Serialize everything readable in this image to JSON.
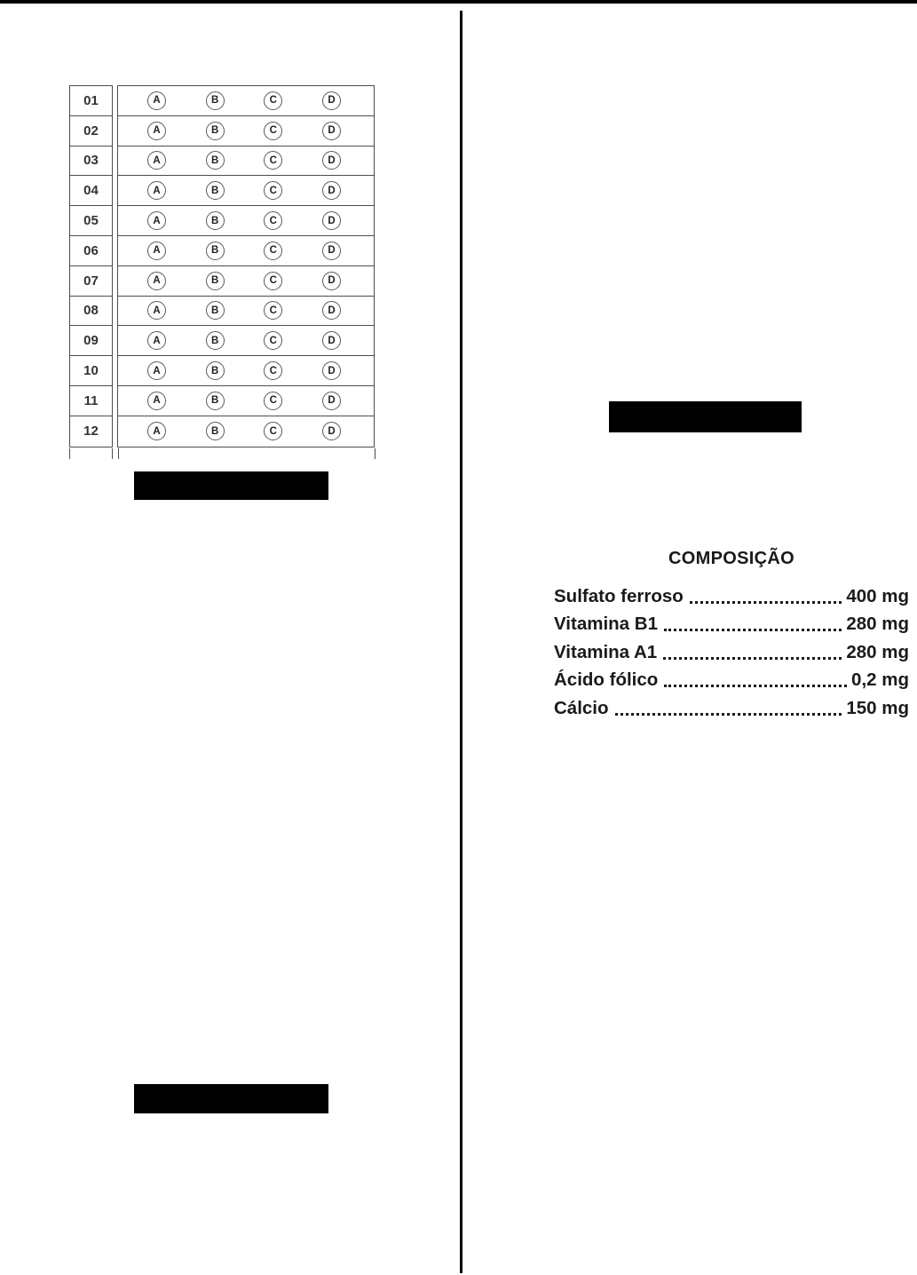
{
  "colors": {
    "redaction": "#000000",
    "rule": "#000000",
    "table_border": "#4d4d4d",
    "text": "#1a1a1a"
  },
  "answer_sheet": {
    "rows": [
      "01",
      "02",
      "03",
      "04",
      "05",
      "06",
      "07",
      "08",
      "09",
      "10",
      "11",
      "12"
    ],
    "options": [
      "A",
      "B",
      "C",
      "D"
    ]
  },
  "composition": {
    "title": "COMPOSIÇÃO",
    "items": [
      {
        "name": "Sulfato ferroso",
        "value": "400 mg"
      },
      {
        "name": "Vitamina B1",
        "value": "280 mg"
      },
      {
        "name": "Vitamina A1",
        "value": "280 mg"
      },
      {
        "name": "Ácido fólico",
        "value": "0,2 mg"
      },
      {
        "name": "Cálcio",
        "value": "150 mg"
      }
    ]
  }
}
